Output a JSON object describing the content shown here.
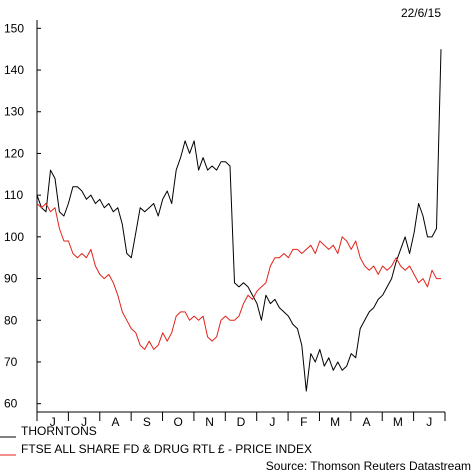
{
  "date_label": "22/6/15",
  "source": "Source: Thomson Reuters Datastream",
  "chart_data": {
    "type": "line",
    "title": "",
    "xlabel": "",
    "ylabel": "",
    "ylim": [
      58,
      152
    ],
    "y_ticks": [
      60,
      70,
      80,
      90,
      100,
      110,
      120,
      130,
      140,
      150
    ],
    "x_ticks": [
      "J",
      "J",
      "A",
      "S",
      "O",
      "N",
      "D",
      "J",
      "F",
      "M",
      "A",
      "M",
      "J"
    ],
    "grid": false,
    "legend_position": "bottom-left",
    "series": [
      {
        "name": "THORNTONS",
        "color": "#000000",
        "values": [
          110,
          107,
          106,
          116,
          114,
          106,
          105,
          108,
          112,
          112,
          111,
          109,
          110,
          108,
          109,
          107,
          108,
          106,
          107,
          103,
          96,
          95,
          101,
          107,
          106,
          107,
          108,
          105,
          109,
          111,
          108,
          116,
          119,
          123,
          120,
          123,
          116,
          119,
          116,
          117,
          116,
          118,
          118,
          117,
          89,
          88,
          89,
          88,
          86,
          84,
          80,
          86,
          84,
          85,
          83,
          82,
          81,
          79,
          78,
          74,
          63,
          72,
          70,
          73,
          69,
          71,
          68,
          70,
          68,
          69,
          72,
          71,
          78,
          80,
          82,
          83,
          85,
          86,
          88,
          90,
          94,
          97,
          100,
          96,
          101,
          108,
          105,
          100,
          100,
          102,
          145
        ]
      },
      {
        "name": "FTSE ALL SHARE FD & DRUG RTL £ - PRICE INDEX",
        "color": "#e2231a",
        "values": [
          108,
          107,
          108,
          106,
          107,
          102,
          99,
          99,
          96,
          95,
          96,
          95,
          97,
          93,
          91,
          90,
          91,
          89,
          86,
          82,
          80,
          78,
          77,
          74,
          73,
          75,
          73,
          74,
          77,
          75,
          77,
          81,
          82,
          82,
          80,
          81,
          80,
          81,
          76,
          75,
          76,
          80,
          81,
          80,
          80,
          81,
          84,
          86,
          85,
          87,
          88,
          89,
          93,
          95,
          95,
          96,
          95,
          97,
          97,
          96,
          97,
          98,
          96,
          99,
          98,
          97,
          98,
          96,
          100,
          99,
          97,
          99,
          95,
          93,
          92,
          93,
          91,
          93,
          92,
          93,
          95,
          93,
          92,
          93,
          91,
          89,
          90,
          88,
          92,
          90,
          90
        ]
      }
    ]
  }
}
